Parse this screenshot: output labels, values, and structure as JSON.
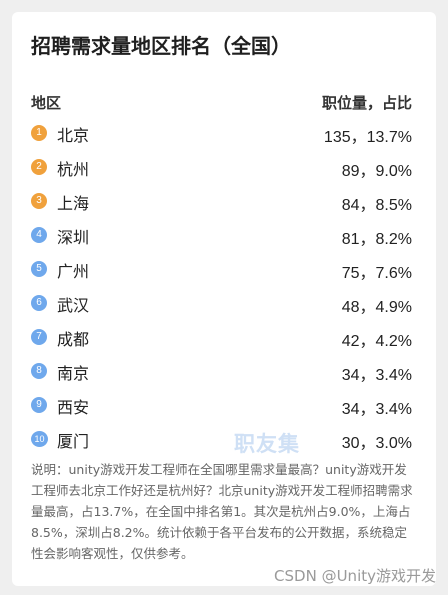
{
  "title": "招聘需求量地区排名（全国）",
  "header": {
    "left": "地区",
    "right": "职位量，占比"
  },
  "rows": [
    {
      "rank": "1",
      "city": "北京",
      "value": "135，13.7%",
      "color": "#f0a13c"
    },
    {
      "rank": "2",
      "city": "杭州",
      "value": "89，9.0%",
      "color": "#f0a13c"
    },
    {
      "rank": "3",
      "city": "上海",
      "value": "84，8.5%",
      "color": "#f0a13c"
    },
    {
      "rank": "4",
      "city": "深圳",
      "value": "81，8.2%",
      "color": "#6fa8ec"
    },
    {
      "rank": "5",
      "city": "广州",
      "value": "75，7.6%",
      "color": "#6fa8ec"
    },
    {
      "rank": "6",
      "city": "武汉",
      "value": "48，4.9%",
      "color": "#6fa8ec"
    },
    {
      "rank": "7",
      "city": "成都",
      "value": "42，4.2%",
      "color": "#6fa8ec"
    },
    {
      "rank": "8",
      "city": "南京",
      "value": "34，3.4%",
      "color": "#6fa8ec"
    },
    {
      "rank": "9",
      "city": "西安",
      "value": "34，3.4%",
      "color": "#6fa8ec"
    },
    {
      "rank": "10",
      "city": "厦门",
      "value": "30，3.0%",
      "color": "#6fa8ec"
    }
  ],
  "watermark": "职友集",
  "description": "说明：unity游戏开发工程师在全国哪里需求量最高？unity游戏开发工程师去北京工作好还是杭州好？北京unity游戏开发工程师招聘需求量最高，占13.7%，在全国中排名第1。其次是杭州占9.0%，上海占8.5%，深圳占8.2%。统计依赖于各平台发布的公开数据，系统稳定性会影响客观性，仅供参考。",
  "footer": "CSDN @Unity游戏开发"
}
